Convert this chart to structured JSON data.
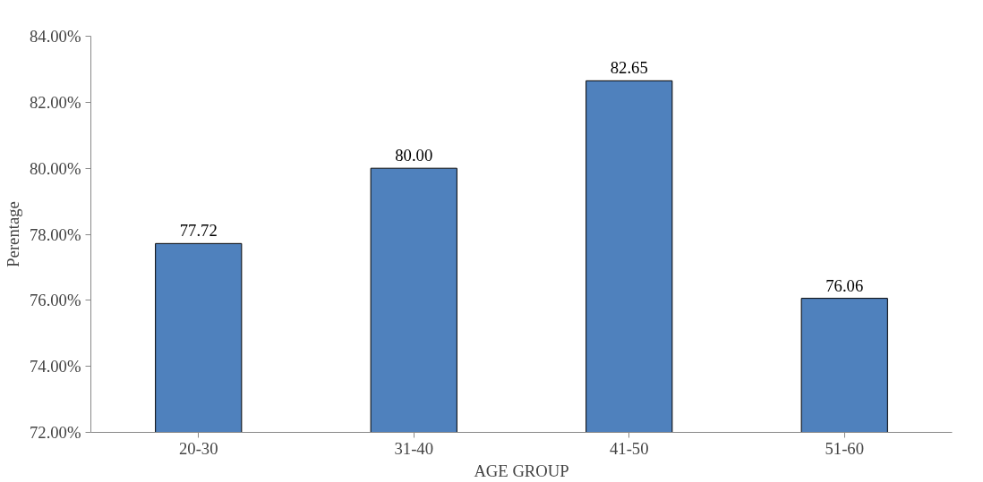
{
  "chart_data": {
    "type": "bar",
    "xlabel": "AGE GROUP",
    "ylabel": "Perentage",
    "categories": [
      "20-30",
      "31-40",
      "41-50",
      "51-60"
    ],
    "values": [
      77.72,
      80.0,
      82.65,
      76.06
    ],
    "value_labels": [
      "77.72",
      "80.00",
      "82.65",
      "76.06"
    ],
    "color": "#4f81bd",
    "ylim": [
      72,
      84
    ],
    "yticks": [
      {
        "value": 72,
        "label": "72.00%"
      },
      {
        "value": 74,
        "label": "74.00%"
      },
      {
        "value": 76,
        "label": "76.00%"
      },
      {
        "value": 78,
        "label": "78.00%"
      },
      {
        "value": 80,
        "label": "80.00%"
      },
      {
        "value": 82,
        "label": "82.00%"
      },
      {
        "value": 84,
        "label": "84.00%"
      }
    ],
    "grid": false
  }
}
